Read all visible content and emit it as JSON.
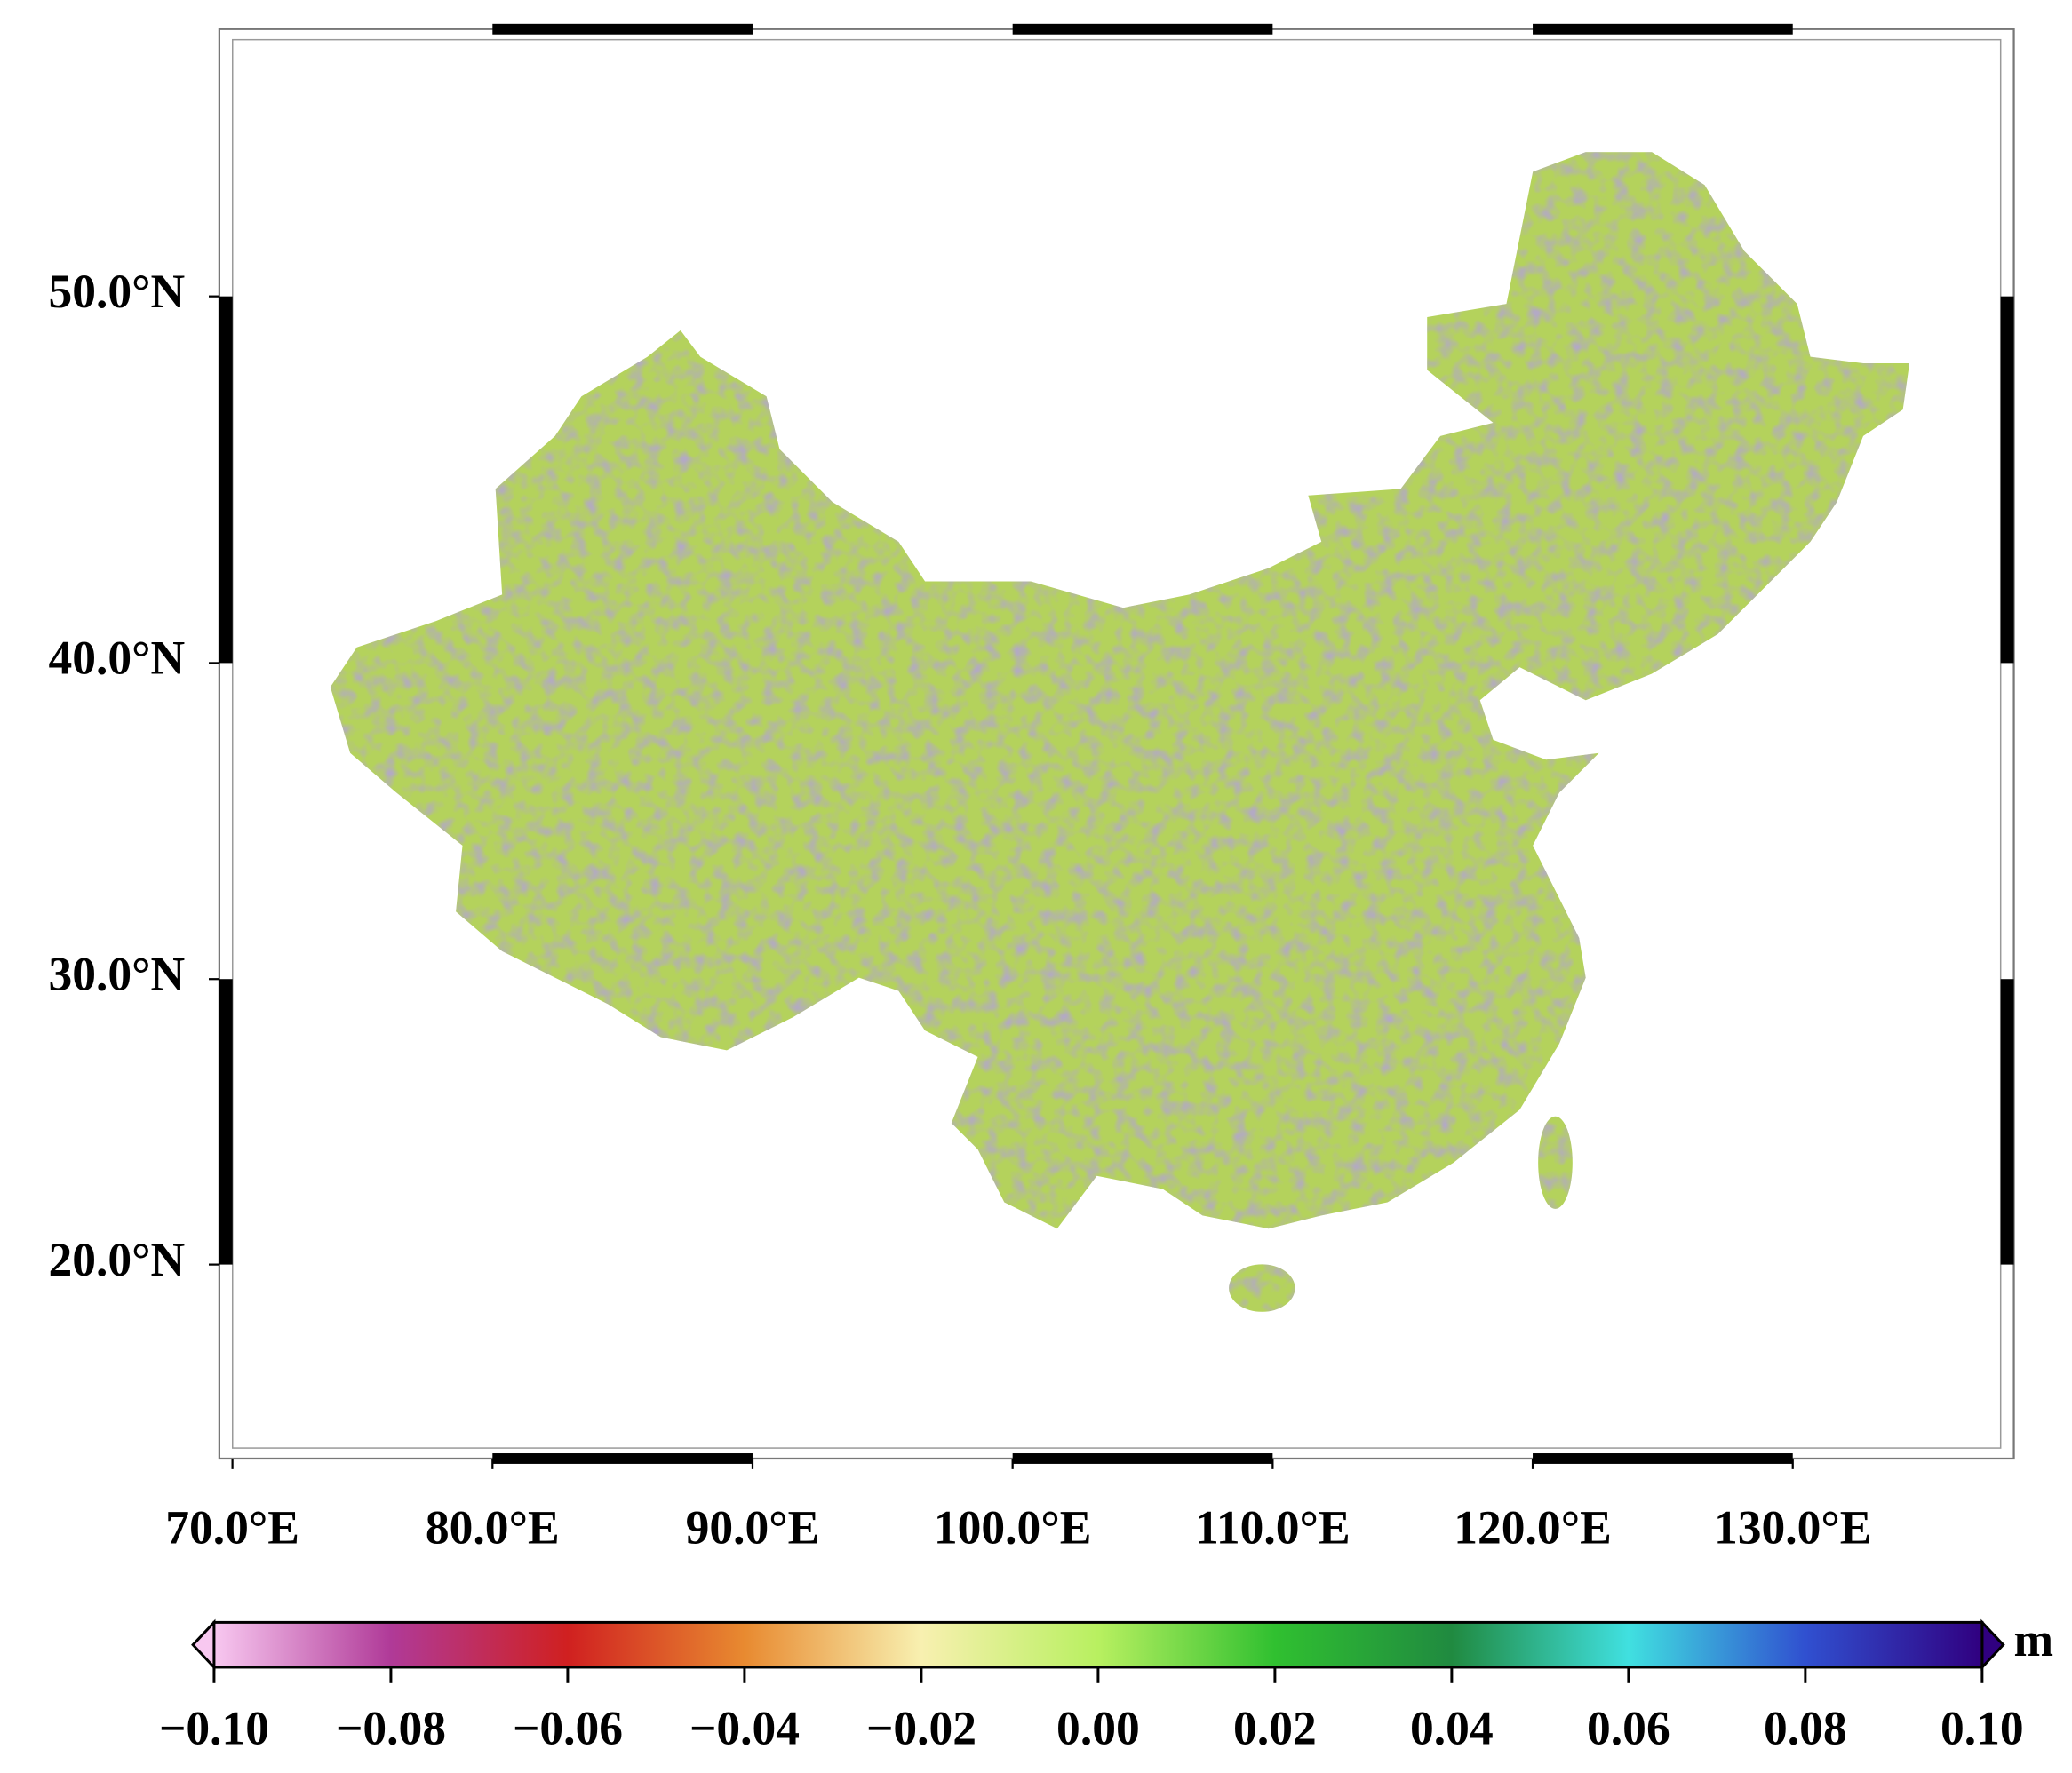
{
  "map": {
    "lonlim": [
      69.7,
      138.4
    ],
    "latlim": [
      12.8,
      56.2
    ],
    "lonticks": [
      {
        "value": 70,
        "label": "70.0°E"
      },
      {
        "value": 80,
        "label": "80.0°E"
      },
      {
        "value": 90,
        "label": "90.0°E"
      },
      {
        "value": 100,
        "label": "100.0°E"
      },
      {
        "value": 110,
        "label": "110.0°E"
      },
      {
        "value": 120,
        "label": "120.0°E"
      },
      {
        "value": 130,
        "label": "130.0°E"
      }
    ],
    "latticks": [
      {
        "value": 20,
        "label": "20.0°N"
      },
      {
        "value": 30,
        "label": "30.0°N"
      },
      {
        "value": 40,
        "label": "40.0°N"
      },
      {
        "value": 50,
        "label": "50.0°N"
      }
    ],
    "colorbar": {
      "lim": [
        -0.1,
        0.1
      ],
      "unit": "m",
      "colormap": [
        "#f8c8f0",
        "#b03a98",
        "#d02020",
        "#e88a30",
        "#f8f0b0",
        "#b8f060",
        "#30c030",
        "#208a40",
        "#40e0e0",
        "#3050d0",
        "#300080"
      ],
      "ticks": [
        {
          "value": -0.1,
          "label": "−0.10"
        },
        {
          "value": -0.08,
          "label": "−0.08"
        },
        {
          "value": -0.06,
          "label": "−0.06"
        },
        {
          "value": -0.04,
          "label": "−0.04"
        },
        {
          "value": -0.02,
          "label": "−0.02"
        },
        {
          "value": 0,
          "label": "0.00"
        },
        {
          "value": 0.02,
          "label": "0.02"
        },
        {
          "value": 0.04,
          "label": "0.04"
        },
        {
          "value": 0.06,
          "label": "0.06"
        },
        {
          "value": 0.08,
          "label": "0.08"
        },
        {
          "value": 0.1,
          "label": "0.10"
        }
      ]
    }
  }
}
